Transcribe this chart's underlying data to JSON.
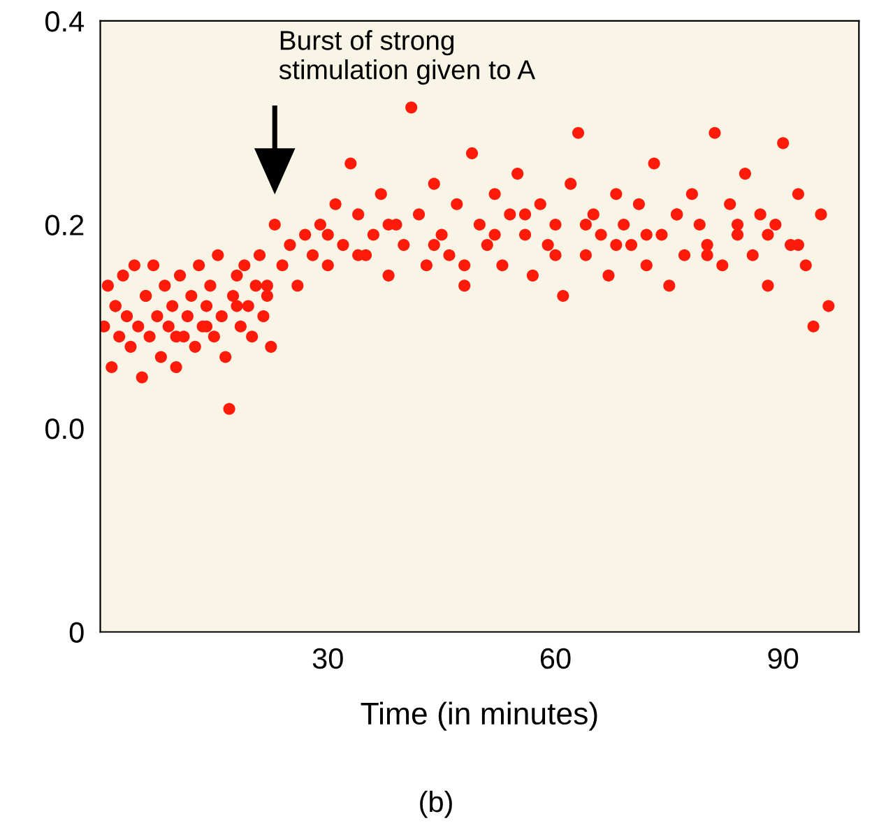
{
  "chart_data": {
    "type": "scatter",
    "xlabel": "Time (in minutes)",
    "annotations": [
      "Burst of strong\nstimulation given to A",
      "(b)"
    ],
    "xlim": [
      0,
      100
    ],
    "ylim": [
      -0.2,
      0.4
    ],
    "xticks": [
      30,
      60,
      90
    ],
    "yticks": [
      {
        "value": -0.2,
        "label": "0"
      },
      {
        "value": 0.0,
        "label": "0.0"
      },
      {
        "value": 0.2,
        "label": "0.2"
      },
      {
        "value": 0.4,
        "label": "0.4"
      }
    ],
    "grid": false,
    "marker": "circle",
    "series": [
      {
        "color": "#ff1a0a",
        "x": [
          0.5,
          1,
          1.5,
          2,
          2.5,
          3,
          3.5,
          4,
          4.5,
          5,
          5.5,
          6,
          6.5,
          7,
          7.5,
          8,
          8.5,
          9,
          9.5,
          10,
          10.5,
          11,
          11.5,
          12,
          12.5,
          13,
          13.5,
          14,
          14.5,
          15,
          15.5,
          16,
          16.5,
          17,
          17.5,
          18,
          18.5,
          19,
          19.5,
          20,
          20.5,
          21,
          21.5,
          22,
          22.5,
          23,
          24,
          25,
          26,
          27,
          28,
          29,
          30,
          31,
          32,
          33,
          34,
          35,
          36,
          37,
          38,
          39,
          40,
          41,
          42,
          43,
          44,
          45,
          46,
          47,
          48,
          49,
          50,
          51,
          52,
          53,
          54,
          55,
          56,
          57,
          58,
          59,
          60,
          61,
          62,
          63,
          64,
          65,
          66,
          67,
          68,
          69,
          70,
          71,
          72,
          73,
          74,
          75,
          76,
          77,
          78,
          79,
          80,
          81,
          82,
          83,
          84,
          85,
          86,
          87,
          88,
          89,
          90,
          91,
          92,
          93,
          94,
          95,
          96,
          2,
          6,
          10,
          14,
          18,
          22,
          30,
          34,
          38,
          44,
          48,
          52,
          56,
          60,
          64,
          68,
          72,
          76,
          80,
          84,
          88,
          92
        ],
        "values": [
          0.1,
          0.14,
          0.06,
          0.12,
          0.09,
          0.15,
          0.11,
          0.08,
          0.16,
          0.1,
          0.05,
          0.13,
          0.09,
          0.16,
          0.11,
          0.07,
          0.14,
          0.1,
          0.12,
          0.06,
          0.15,
          0.09,
          0.11,
          0.13,
          0.08,
          0.16,
          0.1,
          0.12,
          0.14,
          0.09,
          0.17,
          0.11,
          0.07,
          0.019,
          0.13,
          0.15,
          0.1,
          0.16,
          0.12,
          0.09,
          0.14,
          0.17,
          0.11,
          0.13,
          0.08,
          0.2,
          0.16,
          0.18,
          0.14,
          0.19,
          0.17,
          0.2,
          0.16,
          0.22,
          0.18,
          0.26,
          0.21,
          0.17,
          0.19,
          0.23,
          0.15,
          0.2,
          0.18,
          0.315,
          0.21,
          0.16,
          0.24,
          0.19,
          0.17,
          0.22,
          0.14,
          0.27,
          0.2,
          0.18,
          0.23,
          0.16,
          0.21,
          0.25,
          0.19,
          0.15,
          0.22,
          0.18,
          0.2,
          0.13,
          0.24,
          0.29,
          0.17,
          0.21,
          0.19,
          0.15,
          0.23,
          0.2,
          0.18,
          0.22,
          0.16,
          0.26,
          0.19,
          0.14,
          0.21,
          0.17,
          0.23,
          0.2,
          0.18,
          0.29,
          0.16,
          0.22,
          0.19,
          0.25,
          0.17,
          0.21,
          0.14,
          0.2,
          0.28,
          0.18,
          0.23,
          0.16,
          0.1,
          0.21,
          0.12,
          0.12,
          0.13,
          0.09,
          0.1,
          0.12,
          0.14,
          0.19,
          0.17,
          0.2,
          0.18,
          0.16,
          0.19,
          0.21,
          0.17,
          0.2,
          0.18,
          0.19,
          0.21,
          0.17,
          0.2,
          0.19,
          0.18
        ]
      }
    ]
  }
}
